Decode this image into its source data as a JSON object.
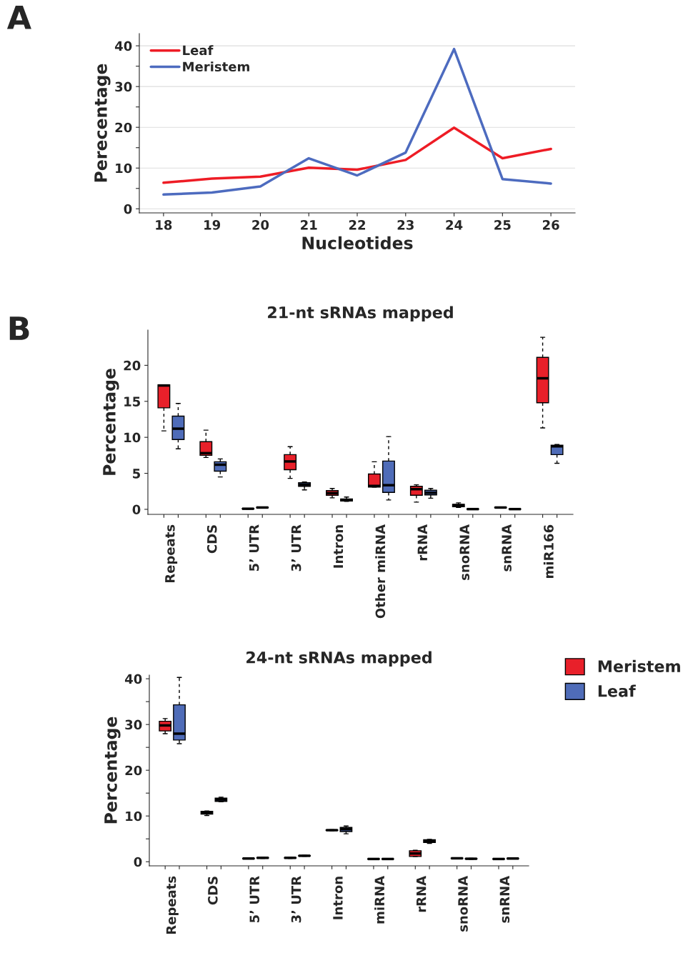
{
  "chart_data": [
    {
      "type": "line",
      "annotations": [
        "A"
      ],
      "xlabel": "Nucleotides",
      "ylabel": "Perecentage",
      "x": [
        18,
        19,
        20,
        21,
        22,
        23,
        24,
        25,
        26
      ],
      "series": [
        {
          "name": "Leaf",
          "color": "#ee1c25",
          "values": [
            6.4,
            7.4,
            7.9,
            10.1,
            9.6,
            12.0,
            19.9,
            12.4,
            14.7
          ]
        },
        {
          "name": "Meristem",
          "color": "#4d6bbf",
          "values": [
            3.5,
            4.0,
            5.5,
            12.4,
            8.2,
            13.8,
            39.2,
            7.3,
            6.2
          ]
        }
      ],
      "xlim": [
        17.5,
        26.5
      ],
      "xticks": [
        18,
        19,
        20,
        21,
        22,
        23,
        24,
        25,
        26
      ],
      "ylim": [
        -1,
        43
      ],
      "yticks": [
        0,
        {
          "value": 5,
          "label": null
        },
        10,
        {
          "value": 15,
          "label": null
        },
        20,
        {
          "value": 25,
          "label": null
        },
        30,
        {
          "value": 35,
          "label": null
        },
        40
      ],
      "grid": "y",
      "legend": "top left",
      "marker": "none"
    },
    {
      "type": "box",
      "annotations": [
        "B"
      ],
      "title": "21-nt sRNAs mapped",
      "ylabel": "Percentage",
      "categories": [
        "Repeats",
        "CDS",
        "5’ UTR",
        "3’ UTR",
        "Intron",
        "Other miRNA",
        "rRNA",
        "snoRNA",
        "snRNA",
        "miR166"
      ],
      "series": [
        {
          "color": "#e8202a",
          "boxes": [
            {
              "low": 10.9,
              "q1": 14.1,
              "median": 17.2,
              "q3": 17.3,
              "high": 17.3
            },
            {
              "low": 7.2,
              "q1": 7.5,
              "median": 7.8,
              "q3": 9.4,
              "high": 11.0
            },
            {
              "low": 0.05,
              "q1": 0.07,
              "median": 0.08,
              "q3": 0.1,
              "high": 0.12
            },
            {
              "low": 4.3,
              "q1": 5.5,
              "median": 6.65,
              "q3": 7.6,
              "high": 8.7
            },
            {
              "low": 1.6,
              "q1": 1.95,
              "median": 2.25,
              "q3": 2.6,
              "high": 2.9
            },
            {
              "low": 3.1,
              "q1": 3.1,
              "median": 3.25,
              "q3": 4.9,
              "high": 6.6
            },
            {
              "low": 1.0,
              "q1": 1.95,
              "median": 2.8,
              "q3": 3.2,
              "high": 3.4
            },
            {
              "low": 0.25,
              "q1": 0.35,
              "median": 0.55,
              "q3": 0.7,
              "high": 0.9
            },
            {
              "low": 0.18,
              "q1": 0.22,
              "median": 0.25,
              "q3": 0.28,
              "high": 0.32
            },
            {
              "low": 11.3,
              "q1": 14.8,
              "median": 18.2,
              "q3": 21.1,
              "high": 23.9
            }
          ]
        },
        {
          "color": "#4f6cb8",
          "boxes": [
            {
              "low": 8.4,
              "q1": 9.7,
              "median": 11.2,
              "q3": 12.95,
              "high": 14.7
            },
            {
              "low": 4.5,
              "q1": 5.3,
              "median": 6.2,
              "q3": 6.6,
              "high": 7.0
            },
            {
              "low": 0.2,
              "q1": 0.22,
              "median": 0.25,
              "q3": 0.28,
              "high": 0.3
            },
            {
              "low": 2.7,
              "q1": 3.2,
              "median": 3.45,
              "q3": 3.7,
              "high": 3.8
            },
            {
              "low": 1.1,
              "q1": 1.15,
              "median": 1.3,
              "q3": 1.45,
              "high": 1.7
            },
            {
              "low": 1.3,
              "q1": 2.35,
              "median": 3.35,
              "q3": 6.7,
              "high": 10.1
            },
            {
              "low": 1.55,
              "q1": 2.0,
              "median": 2.3,
              "q3": 2.65,
              "high": 2.9
            },
            {
              "low": 0.0,
              "q1": 0.02,
              "median": 0.03,
              "q3": 0.05,
              "high": 0.06
            },
            {
              "low": 0.0,
              "q1": 0.02,
              "median": 0.03,
              "q3": 0.05,
              "high": 0.06
            },
            {
              "low": 6.4,
              "q1": 7.6,
              "median": 8.75,
              "q3": 8.9,
              "high": 9.0
            }
          ]
        }
      ],
      "ylim": [
        -0.7,
        24.9
      ],
      "yticks": [
        0,
        5,
        10,
        15,
        20
      ],
      "grid": false,
      "legend": false
    },
    {
      "type": "box",
      "title": "24-nt sRNAs mapped",
      "ylabel": "Percentage",
      "categories": [
        "Repeats",
        "CDS",
        "5’ UTR",
        "3’ UTR",
        "Intron",
        "miRNA",
        "rRNA",
        "snoRNA",
        "snRNA"
      ],
      "series": [
        {
          "name": "Meristem",
          "color": "#e8202a",
          "boxes": [
            {
              "low": 28.0,
              "q1": 28.6,
              "median": 29.8,
              "q3": 30.7,
              "high": 31.3
            },
            {
              "low": 10.1,
              "q1": 10.4,
              "median": 10.7,
              "q3": 11.0,
              "high": 11.1
            },
            {
              "low": 0.6,
              "q1": 0.65,
              "median": 0.7,
              "q3": 0.75,
              "high": 0.8
            },
            {
              "low": 0.75,
              "q1": 0.8,
              "median": 0.85,
              "q3": 0.9,
              "high": 0.95
            },
            {
              "low": 6.8,
              "q1": 6.85,
              "median": 6.9,
              "q3": 6.95,
              "high": 7.0
            },
            {
              "low": 0.5,
              "q1": 0.55,
              "median": 0.6,
              "q3": 0.65,
              "high": 0.7
            },
            {
              "low": 1.15,
              "q1": 1.15,
              "median": 1.8,
              "q3": 2.4,
              "high": 2.5
            },
            {
              "low": 0.65,
              "q1": 0.7,
              "median": 0.75,
              "q3": 0.8,
              "high": 0.85
            },
            {
              "low": 0.5,
              "q1": 0.55,
              "median": 0.6,
              "q3": 0.65,
              "high": 0.7
            }
          ]
        },
        {
          "name": "Leaf",
          "color": "#4f6cb8",
          "boxes": [
            {
              "low": 25.8,
              "q1": 26.6,
              "median": 28.0,
              "q3": 34.3,
              "high": 40.3
            },
            {
              "low": 13.1,
              "q1": 13.2,
              "median": 13.6,
              "q3": 13.9,
              "high": 14.1
            },
            {
              "low": 0.75,
              "q1": 0.8,
              "median": 0.85,
              "q3": 0.9,
              "high": 0.95
            },
            {
              "low": 1.2,
              "q1": 1.25,
              "median": 1.3,
              "q3": 1.35,
              "high": 1.4
            },
            {
              "low": 6.1,
              "q1": 6.6,
              "median": 7.1,
              "q3": 7.5,
              "high": 7.8
            },
            {
              "low": 0.5,
              "q1": 0.55,
              "median": 0.6,
              "q3": 0.65,
              "high": 0.7
            },
            {
              "low": 4.0,
              "q1": 4.2,
              "median": 4.5,
              "q3": 4.8,
              "high": 4.9
            },
            {
              "low": 0.55,
              "q1": 0.6,
              "median": 0.65,
              "q3": 0.7,
              "high": 0.75
            },
            {
              "low": 0.6,
              "q1": 0.65,
              "median": 0.7,
              "q3": 0.75,
              "high": 0.8
            }
          ]
        }
      ],
      "ylim": [
        -0.9,
        40.8
      ],
      "yticks": [
        0,
        {
          "value": 5,
          "label": null
        },
        10,
        {
          "value": 15,
          "label": null
        },
        20,
        {
          "value": 25,
          "label": null
        },
        30,
        {
          "value": 35,
          "label": null
        },
        40
      ],
      "grid": false,
      "legend": "right"
    }
  ]
}
